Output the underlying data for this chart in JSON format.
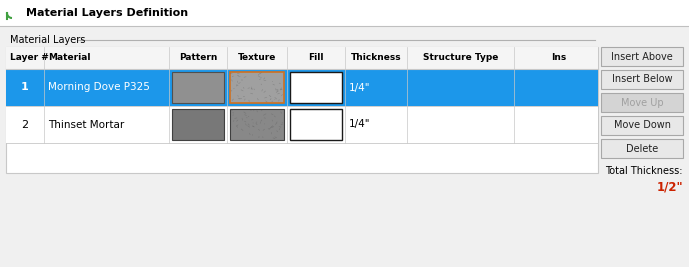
{
  "title": "Material Layers Definition",
  "section_title": "Material Layers",
  "bg_color": "#f0f0f0",
  "title_bg": "#ffffff",
  "headers": [
    "Layer #",
    "Material",
    "Pattern",
    "Texture",
    "Fill",
    "Thickness",
    "Structure Type",
    "Ins"
  ],
  "rows": [
    {
      "layer": "1",
      "material": "Morning Dove P325",
      "thickness": "1/4\"",
      "selected": true
    },
    {
      "layer": "2",
      "material": "Thinset Mortar",
      "thickness": "1/4\"",
      "selected": false
    }
  ],
  "buttons": [
    "Insert Above",
    "Insert Below",
    "Move Up",
    "Move Down",
    "Delete"
  ],
  "btn_active": [
    true,
    true,
    false,
    true,
    true
  ],
  "total_thickness_label": "Total Thickness:",
  "total_thickness_value": "1/2\"",
  "selected_bg": "#1c97ea",
  "selected_text": "#ffffff",
  "unselected_text": "#000000",
  "header_text": "#000000",
  "table_bg": "#ffffff",
  "button_bg": "#e8e8e8",
  "button_disabled_bg": "#d4d4d4",
  "button_disabled_text": "#a0a0a0",
  "grid_color": "#c8c8c8",
  "pattern_color_row1": "#909090",
  "pattern_color_row2": "#787878",
  "texture_color_row1": "#a0a0a0",
  "texture_color_row2": "#888888",
  "texture_border_selected": "#d07020",
  "texture_border_normal": "#404040",
  "fill_color": "#ffffff",
  "total_thickness_color": "#cc2200",
  "icon_color": "#40a040",
  "title_color": "#000000"
}
